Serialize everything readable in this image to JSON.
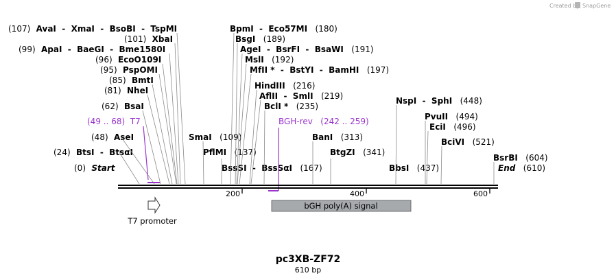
{
  "credit": "Created by",
  "brand": "SnapGene",
  "construct": {
    "name": "pc3XB-ZF72",
    "length_label": "610 bp",
    "length": 610
  },
  "ruler": {
    "ticks": [
      {
        "value": 200,
        "label": "200"
      },
      {
        "value": 400,
        "label": "400"
      },
      {
        "value": 600,
        "label": "600"
      }
    ]
  },
  "sites": [
    {
      "label": "(107)  AvaI  -  XmaI  -  BsoBI  -  TspMI",
      "pos": 107,
      "parts": [
        {
          "t": "(107)",
          "c": "pos"
        },
        {
          "t": "  AvaI  -  XmaI  -  BsoBI  -  TspMI",
          "c": "enz"
        }
      ]
    },
    {
      "label": "(101)  XbaI",
      "pos": 101,
      "parts": [
        {
          "t": "(101)",
          "c": "pos"
        },
        {
          "t": "  XbaI",
          "c": "enz"
        }
      ]
    },
    {
      "label": "(99)  ApaI  -  BaeGI  -  Bme1580I",
      "pos": 99,
      "parts": [
        {
          "t": "(99)",
          "c": "pos"
        },
        {
          "t": "  ApaI  -  BaeGI  -  Bme1580I",
          "c": "enz"
        }
      ]
    },
    {
      "label": "(96)  EcoO109I",
      "pos": 96,
      "parts": [
        {
          "t": "(96)",
          "c": "pos"
        },
        {
          "t": "  EcoO109I",
          "c": "enz"
        }
      ]
    },
    {
      "label": "(95)  PspOMI",
      "pos": 95,
      "parts": [
        {
          "t": "(95)",
          "c": "pos"
        },
        {
          "t": "  PspOMI",
          "c": "enz"
        }
      ]
    },
    {
      "label": "(85)  BmtI",
      "pos": 85,
      "parts": [
        {
          "t": "(85)",
          "c": "pos"
        },
        {
          "t": "  BmtI",
          "c": "enz"
        }
      ]
    },
    {
      "label": "(81)  NheI",
      "pos": 81,
      "parts": [
        {
          "t": "(81)",
          "c": "pos"
        },
        {
          "t": "  NheI",
          "c": "enz"
        }
      ]
    },
    {
      "label": "(62)  BsaI",
      "pos": 62,
      "parts": [
        {
          "t": "(62)",
          "c": "pos"
        },
        {
          "t": "  BsaI",
          "c": "enz"
        }
      ]
    },
    {
      "label": "(49 .. 68)  T7",
      "pos": 49,
      "parts": [
        {
          "t": "(49 .. 68)  T7",
          "c": "primer"
        }
      ]
    },
    {
      "label": "(48)  AseI",
      "pos": 48,
      "parts": [
        {
          "t": "(48)",
          "c": "pos"
        },
        {
          "t": "  AseI",
          "c": "enz"
        }
      ]
    },
    {
      "label": "(24)  BtsI  -  BtsαI",
      "pos": 24,
      "parts": [
        {
          "t": "(24)",
          "c": "pos"
        },
        {
          "t": "  BtsI  -  BtsαI",
          "c": "enz"
        }
      ]
    },
    {
      "label": "(0)  Start",
      "pos": 0,
      "parts": [
        {
          "t": "(0)",
          "c": "pos"
        },
        {
          "t": "  Start",
          "c": "ital"
        }
      ]
    },
    {
      "label": "BpmI  -  Eco57MI   (180)",
      "pos": 180,
      "parts": [
        {
          "t": "BpmI  -  Eco57MI",
          "c": "enz"
        },
        {
          "t": "   (180)",
          "c": "pos"
        }
      ]
    },
    {
      "label": "BsgI   (189)",
      "pos": 189,
      "parts": [
        {
          "t": "BsgI",
          "c": "enz"
        },
        {
          "t": "   (189)",
          "c": "pos"
        }
      ]
    },
    {
      "label": "AgeI  -  BsrFI  -  BsaWI   (191)",
      "pos": 191,
      "parts": [
        {
          "t": "AgeI  -  BsrFI  -  BsaWI",
          "c": "enz"
        },
        {
          "t": "   (191)",
          "c": "pos"
        }
      ]
    },
    {
      "label": "MslI   (192)",
      "pos": 192,
      "parts": [
        {
          "t": "MslI",
          "c": "enz"
        },
        {
          "t": "   (192)",
          "c": "pos"
        }
      ]
    },
    {
      "label": "MfII *  -  BstYI  -  BamHI   (197)",
      "pos": 197,
      "parts": [
        {
          "t": "MfII *  -  BstYI  -  BamHI",
          "c": "enz"
        },
        {
          "t": "   (197)",
          "c": "pos"
        }
      ]
    },
    {
      "label": "HindIII   (216)",
      "pos": 216,
      "parts": [
        {
          "t": "HindIII",
          "c": "enz"
        },
        {
          "t": "   (216)",
          "c": "pos"
        }
      ]
    },
    {
      "label": "AflII  -  SmlI   (219)",
      "pos": 219,
      "parts": [
        {
          "t": "AflII  -  SmlI",
          "c": "enz"
        },
        {
          "t": "   (219)",
          "c": "pos"
        }
      ]
    },
    {
      "label": "BclI *   (235)",
      "pos": 235,
      "parts": [
        {
          "t": "BclI *",
          "c": "enz"
        },
        {
          "t": "   (235)",
          "c": "pos"
        }
      ]
    },
    {
      "label": "SmaI   (109)",
      "pos": 109,
      "parts": [
        {
          "t": "SmaI",
          "c": "enz"
        },
        {
          "t": "   (109)",
          "c": "pos"
        }
      ]
    },
    {
      "label": "PflMI   (137)",
      "pos": 137,
      "parts": [
        {
          "t": "PflMI",
          "c": "enz"
        },
        {
          "t": "   (137)",
          "c": "pos"
        }
      ]
    },
    {
      "label": "BssSI  -  BssSαI   (167)",
      "pos": 167,
      "parts": [
        {
          "t": "BssSI  -  BssSαI",
          "c": "enz"
        },
        {
          "t": "   (167)",
          "c": "pos"
        }
      ]
    },
    {
      "label": "BGH-rev   (242 .. 259)",
      "pos": 259,
      "parts": [
        {
          "t": "BGH-rev   (242 .. 259)",
          "c": "primer"
        }
      ]
    },
    {
      "label": "BanI   (313)",
      "pos": 313,
      "parts": [
        {
          "t": "BanI",
          "c": "enz"
        },
        {
          "t": "   (313)",
          "c": "pos"
        }
      ]
    },
    {
      "label": "BtgZI   (341)",
      "pos": 341,
      "parts": [
        {
          "t": "BtgZI",
          "c": "enz"
        },
        {
          "t": "   (341)",
          "c": "pos"
        }
      ]
    },
    {
      "label": "NspI  -  SphI   (448)",
      "pos": 448,
      "parts": [
        {
          "t": "NspI  -  SphI",
          "c": "enz"
        },
        {
          "t": "   (448)",
          "c": "pos"
        }
      ]
    },
    {
      "label": "BbsI   (437)",
      "pos": 437,
      "parts": [
        {
          "t": "BbsI",
          "c": "enz"
        },
        {
          "t": "   (437)",
          "c": "pos"
        }
      ]
    },
    {
      "label": "PvuII   (494)",
      "pos": 494,
      "parts": [
        {
          "t": "PvuII",
          "c": "enz"
        },
        {
          "t": "   (494)",
          "c": "pos"
        }
      ]
    },
    {
      "label": "EciI   (496)",
      "pos": 496,
      "parts": [
        {
          "t": "EciI",
          "c": "enz"
        },
        {
          "t": "   (496)",
          "c": "pos"
        }
      ]
    },
    {
      "label": "BciVI   (521)",
      "pos": 521,
      "parts": [
        {
          "t": "BciVI",
          "c": "enz"
        },
        {
          "t": "   (521)",
          "c": "pos"
        }
      ]
    },
    {
      "label": "BsrBI   (604)",
      "pos": 604,
      "parts": [
        {
          "t": "BsrBI",
          "c": "enz"
        },
        {
          "t": "   (604)",
          "c": "pos"
        }
      ]
    },
    {
      "label": "End   (610)",
      "pos": 610,
      "parts": [
        {
          "t": "End",
          "c": "ital"
        },
        {
          "t": "   (610)",
          "c": "pos"
        }
      ]
    }
  ],
  "features": [
    {
      "name": "T7 promoter",
      "start": 49,
      "end": 68,
      "kind": "promoter",
      "direction": "forward"
    },
    {
      "name": "bGH poly(A) signal",
      "start": 248,
      "end": 472,
      "kind": "polyA"
    }
  ],
  "primers": [
    {
      "name": "T7",
      "start": 49,
      "end": 68,
      "strand": "top"
    },
    {
      "name": "BGH-rev",
      "start": 242,
      "end": 259,
      "strand": "bottom"
    }
  ],
  "colors": {
    "primer": "#9933cc",
    "feature_fill": "#a7aaad",
    "backbone": "#000000",
    "leader": "#8a8a8a"
  }
}
